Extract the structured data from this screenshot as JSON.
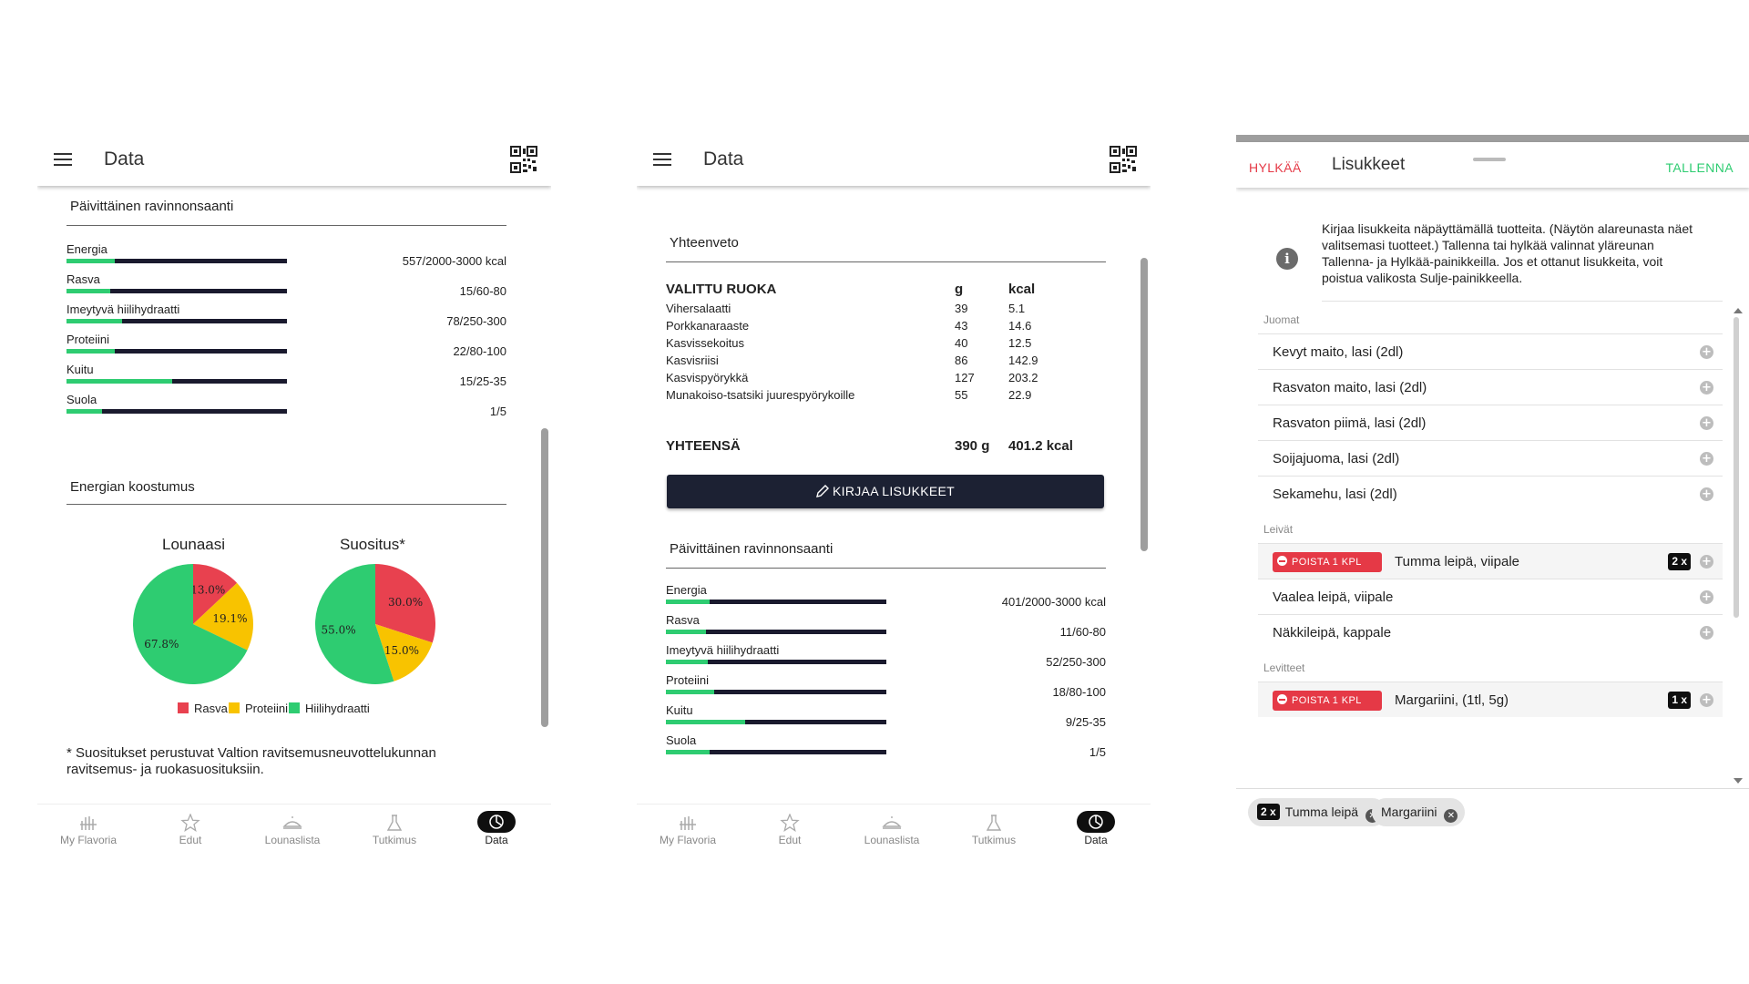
{
  "panel1": {
    "appbar": {
      "title": "Data"
    },
    "daily": {
      "title": "Päivittäinen ravinnonsaanti",
      "items": [
        {
          "label": "Energia",
          "value": "557/2000-3000 kcal",
          "fill": 0.22
        },
        {
          "label": "Rasva",
          "value": "15/60-80",
          "fill": 0.2
        },
        {
          "label": "Imeytyvä hiilihydraatti",
          "value": "78/250-300",
          "fill": 0.25
        },
        {
          "label": "Proteiini",
          "value": "22/80-100",
          "fill": 0.22
        },
        {
          "label": "Kuitu",
          "value": "15/25-35",
          "fill": 0.48
        },
        {
          "label": "Suola",
          "value": "1/5",
          "fill": 0.16
        }
      ]
    },
    "energy": {
      "title": "Energian koostumus",
      "lunch_title": "Lounaasi",
      "rec_title": "Suositus*",
      "legend": [
        {
          "label": "Rasva",
          "color": "#e8414f"
        },
        {
          "label": "Proteiini",
          "color": "#f8c300"
        },
        {
          "label": "Hiilihydraatti",
          "color": "#2ecc71"
        }
      ],
      "footnote": "* Suositukset perustuvat Valtion ravitsemusneuvottelukunnan ravitsemus- ja ruokasuosituksiin."
    }
  },
  "chart_data": [
    {
      "type": "pie",
      "title": "Lounaasi",
      "categories": [
        "Rasva",
        "Proteiini",
        "Hiilihydraatti"
      ],
      "values": [
        13.0,
        19.1,
        67.8
      ],
      "labels": [
        "13.0%",
        "19.1%",
        "67.8%"
      ],
      "colors": [
        "#e8414f",
        "#f8c300",
        "#2ecc71"
      ],
      "legend": "bottom"
    },
    {
      "type": "pie",
      "title": "Suositus*",
      "categories": [
        "Rasva",
        "Proteiini",
        "Hiilihydraatti"
      ],
      "values": [
        30.0,
        15.0,
        55.0
      ],
      "labels": [
        "30.0%",
        "15.0%",
        "55.0%"
      ],
      "colors": [
        "#e8414f",
        "#f8c300",
        "#2ecc71"
      ],
      "legend": "bottom"
    }
  ],
  "panel2": {
    "appbar": {
      "title": "Data"
    },
    "summary": {
      "title": "Yhteenveto",
      "headers": {
        "food": "VALITTU RUOKA",
        "g": "g",
        "kcal": "kcal"
      },
      "rows": [
        {
          "food": "Vihersalaatti",
          "g": "39",
          "kcal": "5.1"
        },
        {
          "food": "Porkkanaraaste",
          "g": "43",
          "kcal": "14.6"
        },
        {
          "food": "Kasvissekoitus",
          "g": "40",
          "kcal": "12.5"
        },
        {
          "food": "Kasvisriisi",
          "g": "86",
          "kcal": "142.9"
        },
        {
          "food": "Kasvispyörykkä",
          "g": "127",
          "kcal": "203.2"
        },
        {
          "food": "Munakoiso-tsatsiki juurespyörykoille",
          "g": "55",
          "kcal": "22.9"
        }
      ],
      "total": {
        "food": "YHTEENSÄ",
        "g": "390 g",
        "kcal": "401.2 kcal"
      }
    },
    "button_label": "KIRJAA LISUKKEET",
    "daily": {
      "title": "Päivittäinen ravinnonsaanti",
      "items": [
        {
          "label": "Energia",
          "value": "401/2000-3000 kcal",
          "fill": 0.2
        },
        {
          "label": "Rasva",
          "value": "11/60-80",
          "fill": 0.18
        },
        {
          "label": "Imeytyvä hiilihydraatti",
          "value": "52/250-300",
          "fill": 0.19
        },
        {
          "label": "Proteiini",
          "value": "18/80-100",
          "fill": 0.22
        },
        {
          "label": "Kuitu",
          "value": "9/25-35",
          "fill": 0.36
        },
        {
          "label": "Suola",
          "value": "1/5",
          "fill": 0.2
        }
      ]
    }
  },
  "bottomnav": [
    {
      "label": "My Flavoria",
      "icon": "hand-icon"
    },
    {
      "label": "Edut",
      "icon": "star-icon"
    },
    {
      "label": "Lounaslista",
      "icon": "dish-icon"
    },
    {
      "label": "Tutkimus",
      "icon": "research-icon"
    },
    {
      "label": "Data",
      "icon": "data-icon",
      "active": true
    }
  ],
  "panel3": {
    "reject": "HYLKÄÄ",
    "title": "Lisukkeet",
    "save": "TALLENNA",
    "info": "Kirjaa lisukkeita näpäyttämällä tuotteita. (Näytön alareunasta näet valitsemasi tuotteet.) Tallenna tai hylkää valinnat yläreunan Tallenna- ja Hylkää-painikkeilla. Jos et ottanut lisukkeita, voit poistua valikosta Sulje-painikkeella.",
    "categories": [
      {
        "name": "Juomat",
        "items": [
          {
            "name": "Kevyt maito, lasi (2dl)"
          },
          {
            "name": "Rasvaton maito, lasi (2dl)"
          },
          {
            "name": "Rasvaton piimä, lasi (2dl)"
          },
          {
            "name": "Soijajuoma, lasi (2dl)"
          },
          {
            "name": "Sekamehu, lasi (2dl)"
          }
        ]
      },
      {
        "name": "Leivät",
        "items": [
          {
            "name": "Tumma leipä, viipale",
            "count": "2 x",
            "remove": "POISTA 1 KPL"
          },
          {
            "name": "Vaalea leipä, viipale"
          },
          {
            "name": "Näkkileipä, kappale"
          }
        ]
      },
      {
        "name": "Levitteet",
        "items": [
          {
            "name": "Margariini, (1tl, 5g)",
            "count": "1 x",
            "remove": "POISTA 1 KPL"
          }
        ]
      }
    ],
    "chips": [
      {
        "count": "2 x",
        "label": "Tumma leipä"
      },
      {
        "label": "Margariini"
      }
    ]
  }
}
